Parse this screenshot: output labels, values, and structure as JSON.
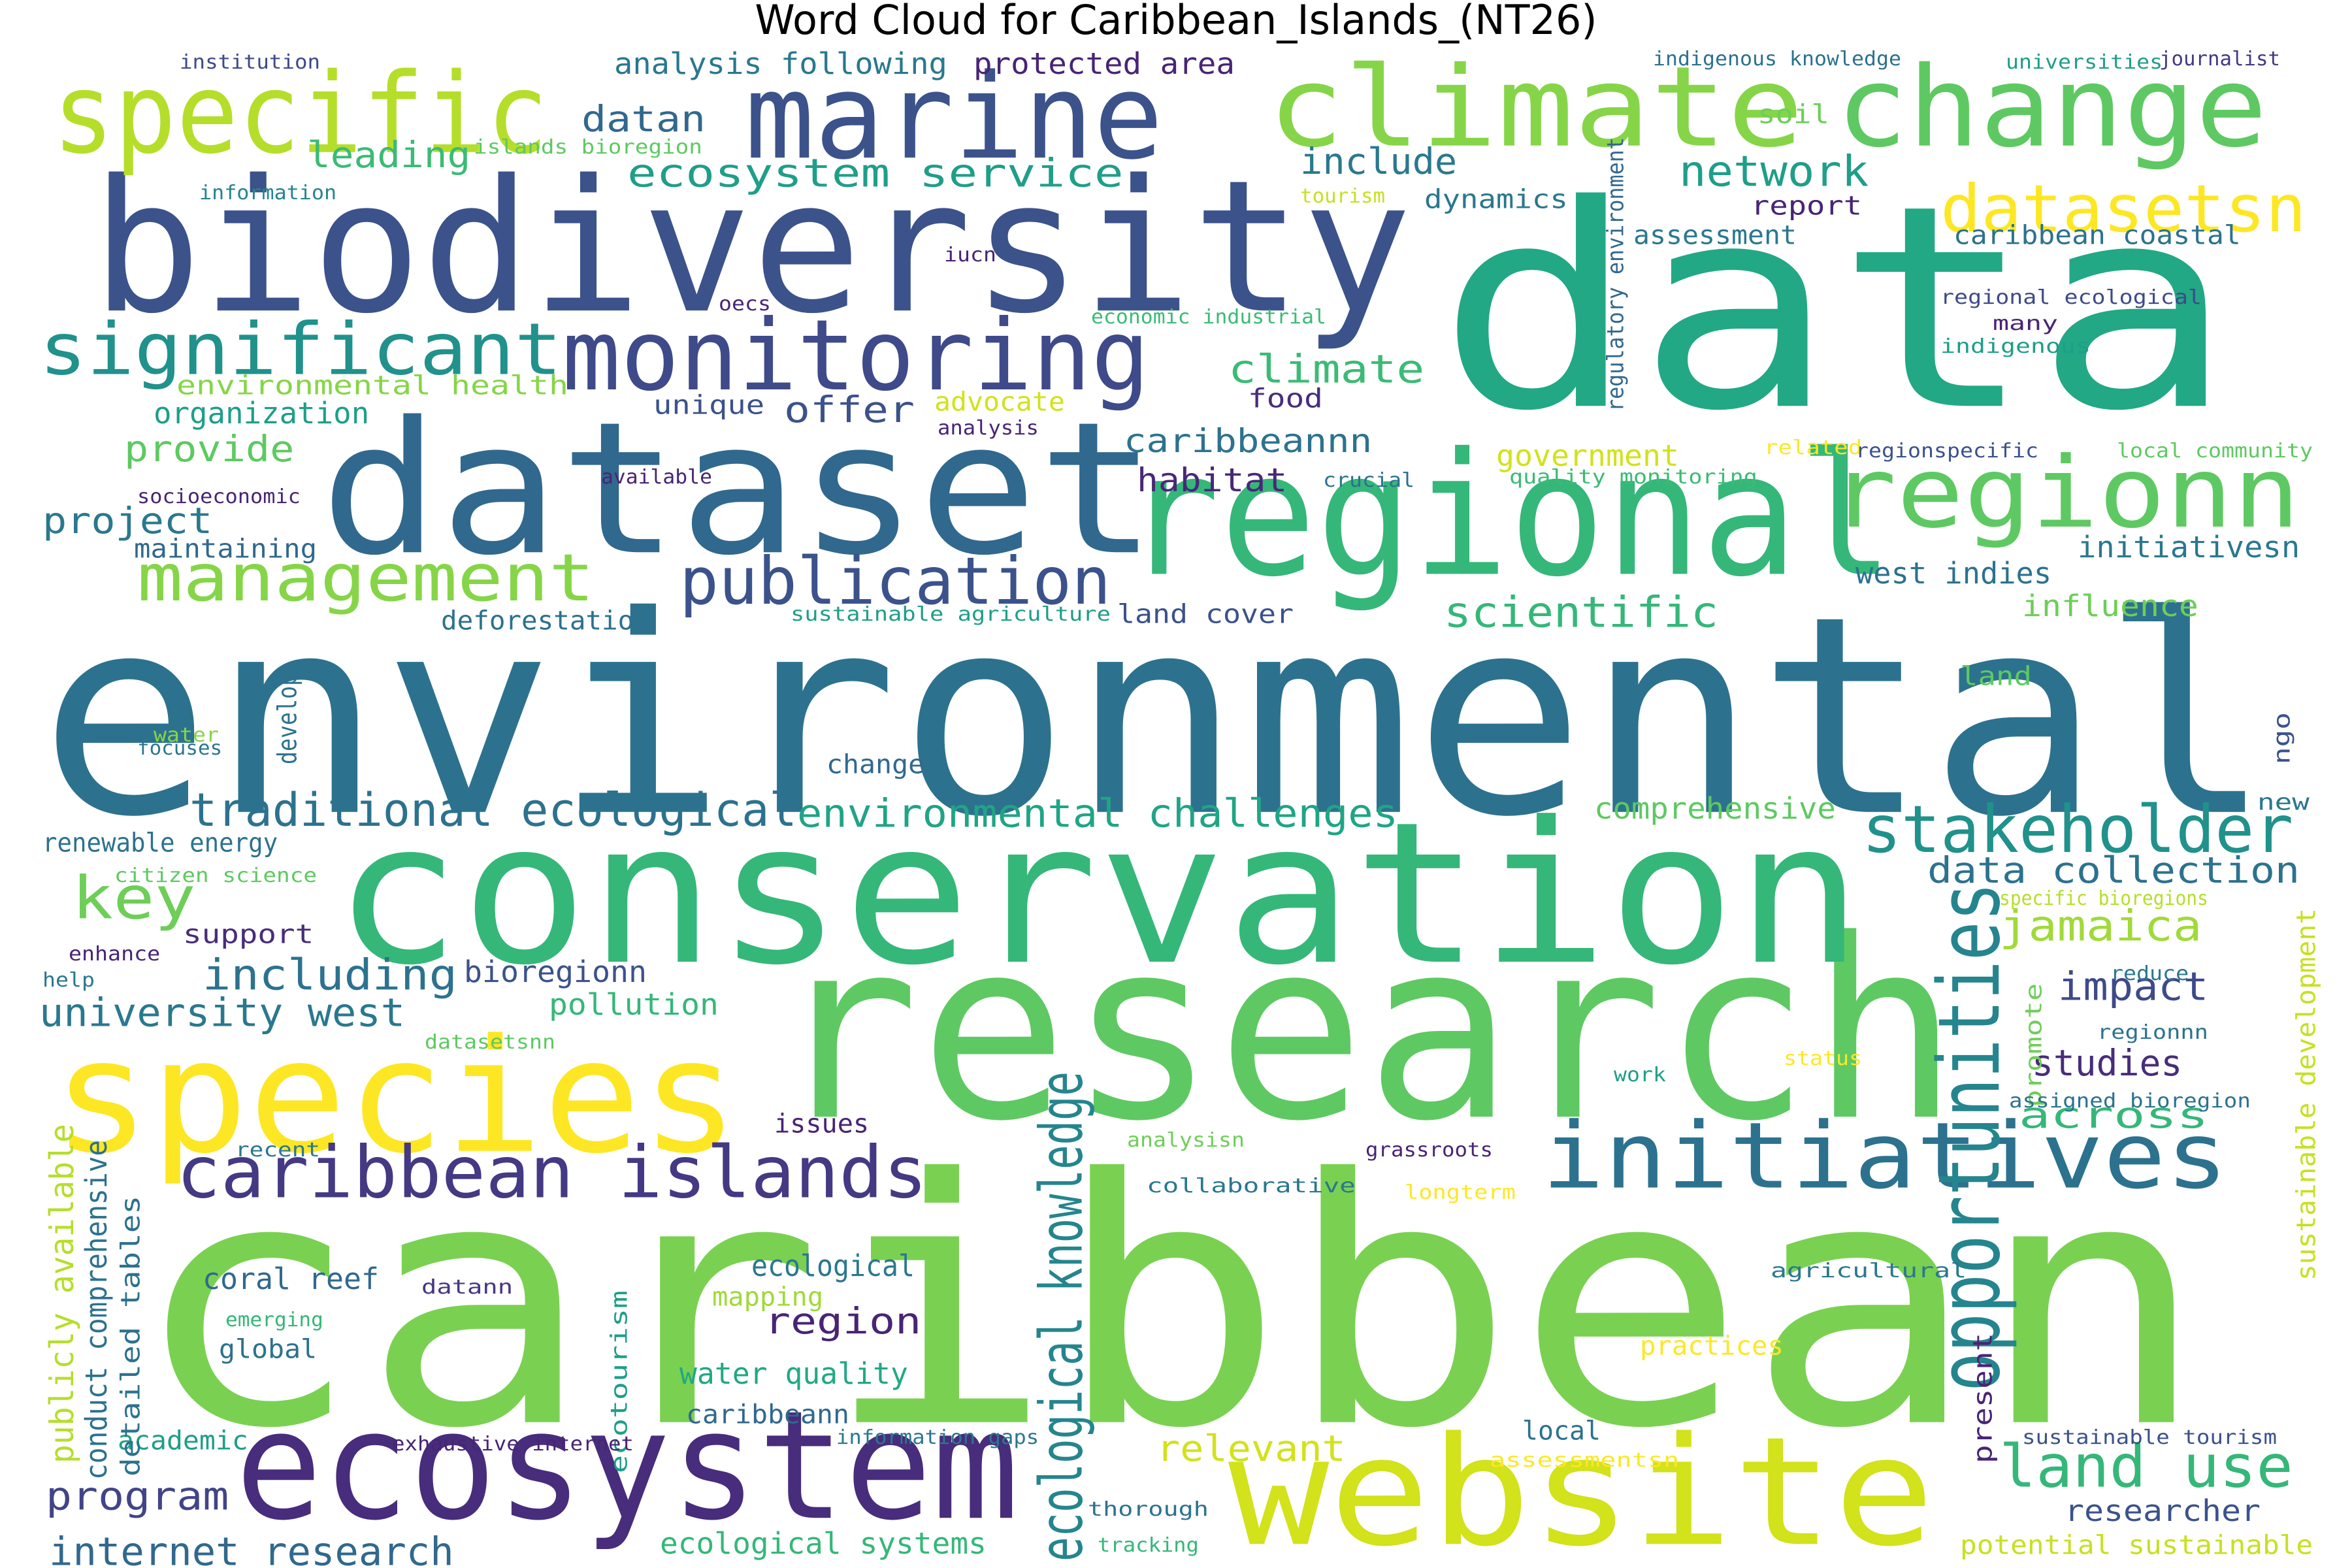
{
  "title": "Word Cloud for Caribbean_Islands_(NT26)",
  "colormap": "viridis",
  "words": [
    {
      "text": "caribbean",
      "color": "#7ad151"
    },
    {
      "text": "environmental",
      "color": "#2c728e"
    },
    {
      "text": "data",
      "color": "#22a884"
    },
    {
      "text": "research",
      "color": "#5ec962"
    },
    {
      "text": "conservation",
      "color": "#35b779"
    },
    {
      "text": "biodiversity",
      "color": "#3b528b"
    },
    {
      "text": "dataset",
      "color": "#31688e"
    },
    {
      "text": "regional",
      "color": "#35b779"
    },
    {
      "text": "species",
      "color": "#fde725"
    },
    {
      "text": "website",
      "color": "#d2e21b"
    },
    {
      "text": "ecosystem",
      "color": "#472d7b"
    },
    {
      "text": "climate",
      "color": "#86d549"
    },
    {
      "text": "change",
      "color": "#5ec962"
    },
    {
      "text": "specific",
      "color": "#b5de2b"
    },
    {
      "text": "marine",
      "color": "#3b528b"
    },
    {
      "text": "regionn",
      "color": "#5ec962"
    },
    {
      "text": "monitoring",
      "color": "#3e4a89"
    },
    {
      "text": "initiatives",
      "color": "#2c728e"
    },
    {
      "text": "caribbean islands",
      "color": "#443983"
    },
    {
      "text": "significant",
      "color": "#21918c"
    },
    {
      "text": "management",
      "color": "#86d549"
    },
    {
      "text": "publication",
      "color": "#3b528b"
    },
    {
      "text": "stakeholder",
      "color": "#21918c"
    },
    {
      "text": "opportunities",
      "color": "#25858e"
    },
    {
      "text": "datasetsn",
      "color": "#fde725"
    },
    {
      "text": "land use",
      "color": "#35b779"
    },
    {
      "text": "key",
      "color": "#6ece58"
    },
    {
      "text": "traditional ecological",
      "color": "#2c728e"
    },
    {
      "text": "environmental challenges",
      "color": "#20a486"
    },
    {
      "text": "ecological knowledge",
      "color": "#25858e"
    },
    {
      "text": "ecosystem service",
      "color": "#1f9e89"
    },
    {
      "text": "network",
      "color": "#1f9e89"
    },
    {
      "text": "scientific",
      "color": "#35b779"
    },
    {
      "text": "internet research",
      "color": "#31688e"
    },
    {
      "text": "program",
      "color": "#414487"
    },
    {
      "text": "university west",
      "color": "#2a788e"
    },
    {
      "text": "including",
      "color": "#2c728e"
    },
    {
      "text": "impact",
      "color": "#3e4a89"
    },
    {
      "text": "jamaica",
      "color": "#a0da39"
    },
    {
      "text": "data collection",
      "color": "#2c728e"
    },
    {
      "text": "region",
      "color": "#482475"
    },
    {
      "text": "relevant",
      "color": "#d2e21b"
    },
    {
      "text": "across",
      "color": "#35b779"
    },
    {
      "text": "studies",
      "color": "#472d7b"
    },
    {
      "text": "researcher",
      "color": "#3b528b"
    },
    {
      "text": "ecological systems",
      "color": "#35b779"
    },
    {
      "text": "potential sustainable",
      "color": "#c8e020"
    },
    {
      "text": "climate",
      "color": "#3bbb75"
    },
    {
      "text": "include",
      "color": "#2a788e"
    },
    {
      "text": "provide",
      "color": "#5ec962"
    },
    {
      "text": "offer",
      "color": "#3b528b"
    },
    {
      "text": "habitat",
      "color": "#482878"
    },
    {
      "text": "project",
      "color": "#2a788e"
    },
    {
      "text": "leading",
      "color": "#3bbb75"
    },
    {
      "text": "datan",
      "color": "#31688e"
    },
    {
      "text": "caribbeannn",
      "color": "#2c728e"
    },
    {
      "text": "analysis following",
      "color": "#2a788e"
    },
    {
      "text": "protected area",
      "color": "#482475"
    },
    {
      "text": "renewable energy",
      "color": "#2c728e"
    },
    {
      "text": "coral reef",
      "color": "#31688e"
    },
    {
      "text": "pollution",
      "color": "#35b779"
    },
    {
      "text": "bioregionn",
      "color": "#3b528b"
    },
    {
      "text": "support",
      "color": "#472d7b"
    },
    {
      "text": "water quality",
      "color": "#22a884"
    },
    {
      "text": "mapping",
      "color": "#a0da39"
    },
    {
      "text": "ecological",
      "color": "#2a788e"
    },
    {
      "text": "global",
      "color": "#2c728e"
    },
    {
      "text": "academic",
      "color": "#1f9e89"
    },
    {
      "text": "caribbeann",
      "color": "#31688e"
    },
    {
      "text": "comprehensive",
      "color": "#5ec962"
    },
    {
      "text": "influence",
      "color": "#6ece58"
    },
    {
      "text": "west indies",
      "color": "#2c728e"
    },
    {
      "text": "initiativesn",
      "color": "#2a788e"
    },
    {
      "text": "government",
      "color": "#d2e21b"
    },
    {
      "text": "organization",
      "color": "#1f9e89"
    },
    {
      "text": "environmental health",
      "color": "#86d549"
    },
    {
      "text": "unique",
      "color": "#3b528b"
    },
    {
      "text": "advocate",
      "color": "#d2e21b"
    },
    {
      "text": "food",
      "color": "#472d7b"
    },
    {
      "text": "land cover",
      "color": "#3b528b"
    },
    {
      "text": "deforestation",
      "color": "#2c728e"
    },
    {
      "text": "maintaining",
      "color": "#31688e"
    },
    {
      "text": "soil",
      "color": "#6ece58"
    },
    {
      "text": "report",
      "color": "#482475"
    },
    {
      "text": "assessment",
      "color": "#2a788e"
    },
    {
      "text": "caribbean coastal",
      "color": "#2c728e"
    },
    {
      "text": "dynamics",
      "color": "#2a788e"
    },
    {
      "text": "land",
      "color": "#5ec962"
    },
    {
      "text": "change",
      "color": "#31688e"
    },
    {
      "text": "issues",
      "color": "#482475"
    },
    {
      "text": "practices",
      "color": "#fde725"
    },
    {
      "text": "local",
      "color": "#2c728e"
    },
    {
      "text": "new",
      "color": "#2a788e"
    },
    {
      "text": "institution",
      "color": "#3e4a89"
    },
    {
      "text": "islands bioregion",
      "color": "#5ec962"
    },
    {
      "text": "information",
      "color": "#25858e"
    },
    {
      "text": "tourism",
      "color": "#c8e020"
    },
    {
      "text": "iucn",
      "color": "#482475"
    },
    {
      "text": "oecs",
      "color": "#482475"
    },
    {
      "text": "economic industrial",
      "color": "#3bbb75"
    },
    {
      "text": "regulatory environment",
      "color": "#31688e"
    },
    {
      "text": "indigenous knowledge",
      "color": "#2c728e"
    },
    {
      "text": "universities",
      "color": "#1f9e89"
    },
    {
      "text": "journalist",
      "color": "#443983"
    },
    {
      "text": "regional ecological",
      "color": "#3e4a89"
    },
    {
      "text": "many",
      "color": "#482475"
    },
    {
      "text": "indigenous",
      "color": "#1f9e89"
    },
    {
      "text": "analysis",
      "color": "#482475"
    },
    {
      "text": "available",
      "color": "#482475"
    },
    {
      "text": "socioeconomic",
      "color": "#482475"
    },
    {
      "text": "crucial",
      "color": "#2c728e"
    },
    {
      "text": "quality monitoring",
      "color": "#3bbb75"
    },
    {
      "text": "related",
      "color": "#fde725"
    },
    {
      "text": "regionspecific",
      "color": "#3b528b"
    },
    {
      "text": "local community",
      "color": "#5ec962"
    },
    {
      "text": "sustainable agriculture",
      "color": "#1f9e89"
    },
    {
      "text": "water",
      "color": "#86d549"
    },
    {
      "text": "focuses",
      "color": "#2a788e"
    },
    {
      "text": "develop",
      "color": "#2c728e"
    },
    {
      "text": "ngo",
      "color": "#3b528b"
    },
    {
      "text": "citizen science",
      "color": "#5ec962"
    },
    {
      "text": "enhance",
      "color": "#482475"
    },
    {
      "text": "help",
      "color": "#2a788e"
    },
    {
      "text": "datasetsnn",
      "color": "#5ec962"
    },
    {
      "text": "specific bioregions",
      "color": "#b5de2b"
    },
    {
      "text": "reduce",
      "color": "#2a788e"
    },
    {
      "text": "regionnn",
      "color": "#2c728e"
    },
    {
      "text": "promote",
      "color": "#6ece58"
    },
    {
      "text": "sustainable development",
      "color": "#c8e020"
    },
    {
      "text": "status",
      "color": "#fde725"
    },
    {
      "text": "work",
      "color": "#1f9e89"
    },
    {
      "text": "assigned bioregion",
      "color": "#2c728e"
    },
    {
      "text": "analysisn",
      "color": "#6ece58"
    },
    {
      "text": "recent",
      "color": "#2a788e"
    },
    {
      "text": "grassroots",
      "color": "#482475"
    },
    {
      "text": "collaborative",
      "color": "#2a788e"
    },
    {
      "text": "longterm",
      "color": "#fde725"
    },
    {
      "text": "publicly available",
      "color": "#b5de2b"
    },
    {
      "text": "conduct comprehensive",
      "color": "#2c728e"
    },
    {
      "text": "detailed tables",
      "color": "#2c728e"
    },
    {
      "text": "datann",
      "color": "#443983"
    },
    {
      "text": "emerging",
      "color": "#35b779"
    },
    {
      "text": "ecotourism",
      "color": "#1f9e89"
    },
    {
      "text": "agricultural",
      "color": "#2a788e"
    },
    {
      "text": "present",
      "color": "#482475"
    },
    {
      "text": "exhaustive internet",
      "color": "#482475"
    },
    {
      "text": "information gaps",
      "color": "#2a788e"
    },
    {
      "text": "assessmentsn",
      "color": "#fde725"
    },
    {
      "text": "sustainable tourism",
      "color": "#3b528b"
    },
    {
      "text": "thorough",
      "color": "#2c728e"
    },
    {
      "text": "tracking",
      "color": "#35b779"
    }
  ]
}
